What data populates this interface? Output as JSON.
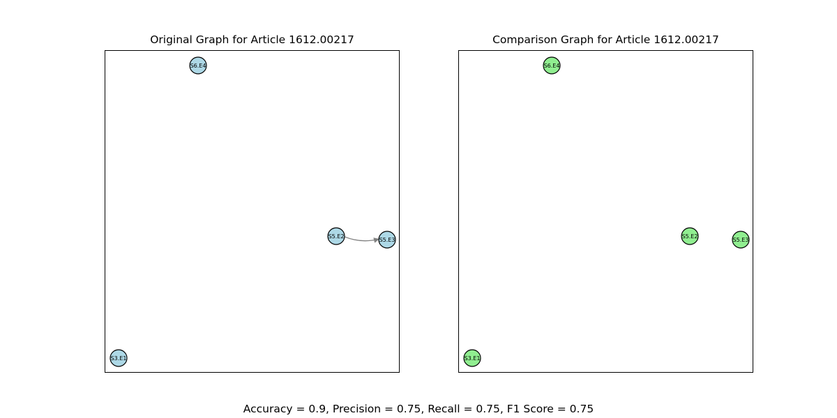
{
  "left_graph": {
    "title": "Original Graph for Article 1612.00217",
    "node_color": "#add8e6",
    "edge_color": "#808080",
    "nodes": [
      {
        "id": "S6.E4"
      },
      {
        "id": "S5.E2"
      },
      {
        "id": "S5.E3"
      },
      {
        "id": "S3.E1"
      }
    ],
    "edges": [
      {
        "source": "S5.E2",
        "target": "S5.E3"
      }
    ]
  },
  "right_graph": {
    "title": "Comparison Graph for Article 1612.00217",
    "node_color": "#90ee90",
    "edge_color": "#808080",
    "nodes": [
      {
        "id": "S6.E4"
      },
      {
        "id": "S5.E2"
      },
      {
        "id": "S5.E3"
      },
      {
        "id": "S3.E1"
      }
    ],
    "edges": []
  },
  "metrics": "Accuracy = 0.9, Precision = 0.75, Recall = 0.75, F1 Score = 0.75"
}
